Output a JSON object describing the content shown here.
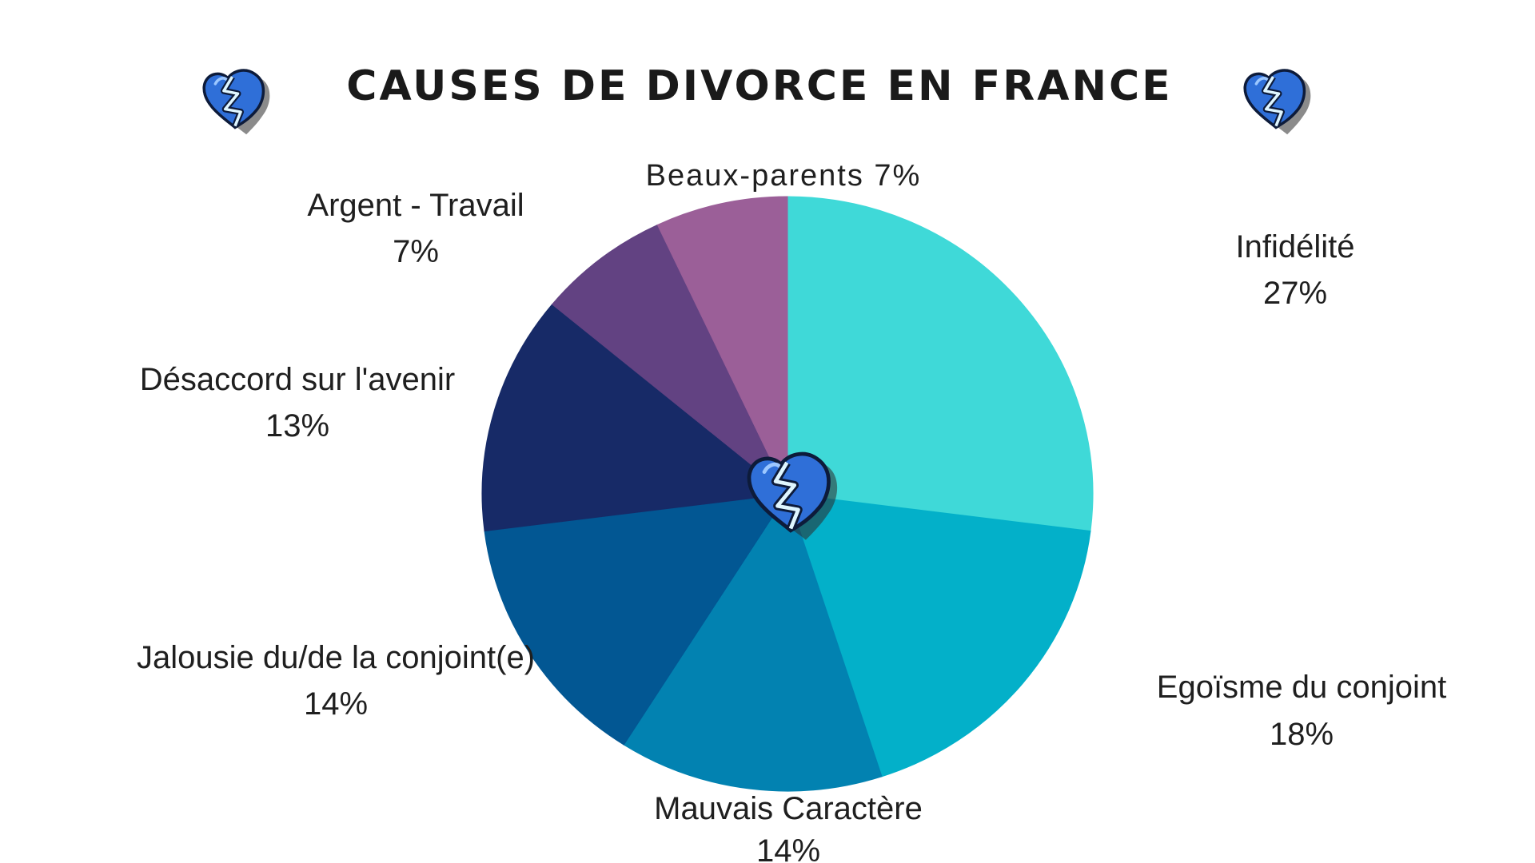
{
  "title": "CAUSES DE DIVORCE EN FRANCE",
  "chart_data": {
    "type": "pie",
    "title": "CAUSES DE DIVORCE EN FRANCE",
    "slices": [
      {
        "label": "Infidélité",
        "value": 27,
        "value_text": "27%",
        "color": "#3fd9d8"
      },
      {
        "label": "Egoïsme du conjoint",
        "value": 18,
        "value_text": "18%",
        "color": "#03b0c9"
      },
      {
        "label": "Mauvais Caractère",
        "value": 14,
        "value_text": "14%",
        "color": "#0282b1"
      },
      {
        "label": "Jalousie du/de la conjoint(e)",
        "value": 14,
        "value_text": "14%",
        "color": "#025793"
      },
      {
        "label": "Désaccord sur l'avenir",
        "value": 13,
        "value_text": "13%",
        "color": "#172a67"
      },
      {
        "label": "Argent - Travail",
        "value": 7,
        "value_text": "7%",
        "color": "#624282"
      },
      {
        "label": "Beaux-parents",
        "value": 7,
        "value_text": "7%",
        "color": "#9b5f98"
      }
    ],
    "beaux_parents_label": "Beaux-parents 7%"
  },
  "icons": [
    "broken-heart-icon",
    "broken-heart-icon",
    "broken-heart-icon"
  ]
}
